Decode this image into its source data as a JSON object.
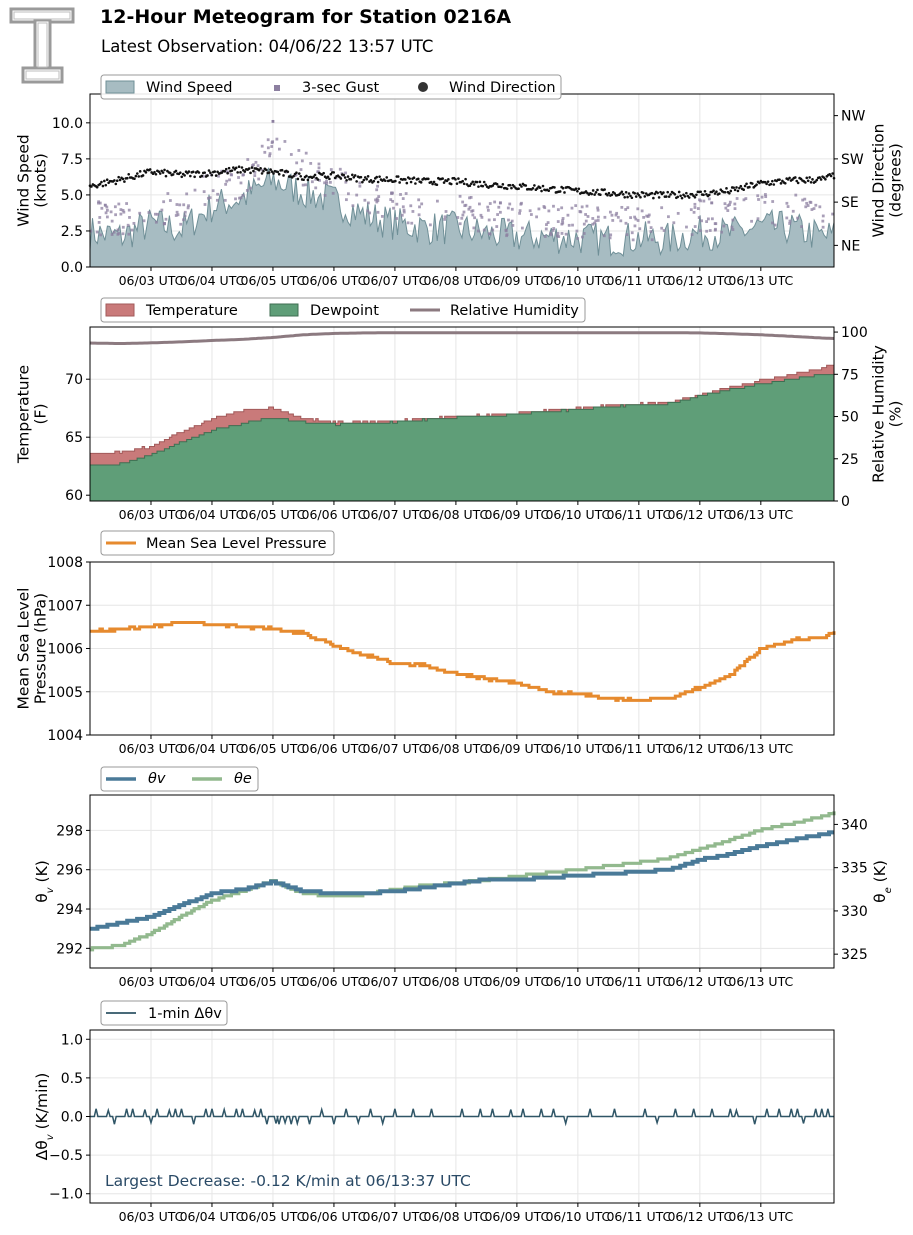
{
  "header": {
    "title": "12-Hour Meteogram for Station 0216A",
    "subtitle": "Latest Observation: 04/06/22 13:57 UTC",
    "logo_label": "TT"
  },
  "colors": {
    "wind_fill": "#a7bcc2",
    "wind_line": "#6f8f97",
    "gust": "#8c7fa0",
    "direction": "#111111",
    "temperature": "#c97a7a",
    "temperature_edge": "#a25a5a",
    "dewpoint": "#5f9e78",
    "dewpoint_edge": "#3f6e52",
    "rh": "#8c7a80",
    "pressure": "#e68a2e",
    "theta_v": "#4a7a98",
    "theta_e": "#92b98e",
    "dtheta": "#2f5566",
    "annotation": "#2a4a66",
    "grid": "#e6e6e6"
  },
  "x_ticks": [
    "06/03 UTC",
    "06/04 UTC",
    "06/05 UTC",
    "06/06 UTC",
    "06/07 UTC",
    "06/08 UTC",
    "06/09 UTC",
    "06/10 UTC",
    "06/11 UTC",
    "06/12 UTC",
    "06/13 UTC"
  ],
  "chart_data": [
    {
      "type": "area",
      "id": "wind",
      "x_range": [
        0,
        12.2
      ],
      "ylabel": "Wind Speed\n(knots)",
      "ylim": [
        0,
        12
      ],
      "yticks": [
        "0.0",
        "2.5",
        "5.0",
        "7.5",
        "10.0"
      ],
      "ytick_values": [
        0,
        2.5,
        5.0,
        7.5,
        10.0
      ],
      "y2label": "Wind Direction\n(degrees)",
      "y2ticks": [
        "NE",
        "SE",
        "SW",
        "NW"
      ],
      "y2tick_values": [
        45,
        135,
        225,
        315
      ],
      "y2lim": [
        0,
        360
      ],
      "grid": true,
      "legend": "top-left",
      "series": [
        {
          "name": "Wind Speed",
          "kind": "area",
          "x": [
            0,
            0.5,
            1,
            1.5,
            2,
            2.5,
            3,
            3.5,
            4,
            4.5,
            5,
            5.5,
            6,
            6.5,
            7,
            7.5,
            8,
            8.5,
            9,
            9.5,
            10,
            10.5,
            11,
            11.5,
            12,
            12.2
          ],
          "values": [
            2.4,
            2.1,
            3.0,
            2.6,
            4.2,
            4.8,
            6.0,
            5.2,
            4.6,
            3.6,
            3.0,
            2.7,
            2.7,
            2.3,
            2.1,
            2.1,
            2.0,
            1.9,
            2.0,
            1.9,
            2.4,
            2.3,
            2.8,
            2.7,
            2.1,
            2.2
          ]
        },
        {
          "name": "3-sec Gust",
          "kind": "scatter",
          "x": [
            0,
            0.5,
            1,
            1.5,
            2,
            2.5,
            3,
            3.5,
            4,
            4.5,
            5,
            5.5,
            6,
            6.5,
            7,
            7.5,
            8,
            8.5,
            9,
            9.5,
            10,
            10.5,
            11,
            11.5,
            12,
            12.2
          ],
          "values": [
            3.4,
            3.2,
            4.2,
            4.0,
            5.6,
            6.0,
            8.2,
            6.8,
            5.8,
            4.8,
            4.4,
            3.9,
            3.8,
            3.5,
            3.3,
            3.3,
            3.1,
            3.0,
            3.1,
            3.0,
            3.6,
            3.5,
            4.2,
            4.0,
            3.3,
            3.4
          ]
        },
        {
          "name": "Wind Direction",
          "kind": "scatter",
          "axis": "right",
          "x": [
            0,
            0.5,
            1,
            1.5,
            2,
            2.5,
            3,
            3.5,
            4,
            4.5,
            5,
            5.5,
            6,
            6.5,
            7,
            7.5,
            8,
            8.5,
            9,
            9.5,
            10,
            10.5,
            11,
            11.5,
            12,
            12.2
          ],
          "values": [
            168,
            182,
            198,
            192,
            196,
            203,
            198,
            188,
            190,
            183,
            182,
            178,
            178,
            172,
            168,
            163,
            158,
            154,
            150,
            149,
            152,
            158,
            174,
            180,
            182,
            190
          ]
        }
      ]
    },
    {
      "type": "area",
      "id": "temp",
      "x_range": [
        0,
        12.2
      ],
      "ylabel": "Temperature\n(F)",
      "ylim": [
        59.5,
        74.5
      ],
      "yticks": [
        "60",
        "65",
        "70"
      ],
      "ytick_values": [
        60,
        65,
        70
      ],
      "y2label": "Relative Humidity\n(%)",
      "y2ticks": [
        "0",
        "25",
        "50",
        "75",
        "100"
      ],
      "y2tick_values": [
        0,
        25,
        50,
        75,
        100
      ],
      "y2lim": [
        0,
        103
      ],
      "grid": true,
      "legend": "top-left",
      "series": [
        {
          "name": "Temperature",
          "kind": "area",
          "x": [
            0,
            0.5,
            1,
            1.5,
            2,
            2.5,
            3,
            3.5,
            4,
            4.5,
            5,
            5.5,
            6,
            6.5,
            7,
            7.5,
            8,
            8.5,
            9,
            9.5,
            10,
            10.5,
            11,
            11.5,
            12,
            12.2
          ],
          "values": [
            63.6,
            63.7,
            64.2,
            65.5,
            66.6,
            67.3,
            67.5,
            66.6,
            66.3,
            66.3,
            66.4,
            66.6,
            66.8,
            66.9,
            67.1,
            67.3,
            67.5,
            67.7,
            67.9,
            68.0,
            68.7,
            69.3,
            69.9,
            70.4,
            70.9,
            71.4
          ]
        },
        {
          "name": "Dewpoint",
          "kind": "area",
          "x": [
            0,
            0.5,
            1,
            1.5,
            2,
            2.5,
            3,
            3.5,
            4,
            4.5,
            5,
            5.5,
            6,
            6.5,
            7,
            7.5,
            8,
            8.5,
            9,
            9.5,
            10,
            10.5,
            11,
            11.5,
            12,
            12.2
          ],
          "values": [
            62.5,
            62.7,
            63.5,
            64.6,
            65.6,
            66.2,
            66.7,
            66.3,
            66.1,
            66.2,
            66.3,
            66.5,
            66.7,
            66.8,
            67.0,
            67.2,
            67.4,
            67.6,
            67.8,
            67.9,
            68.6,
            69.1,
            69.6,
            70.0,
            70.4,
            70.5
          ]
        },
        {
          "name": "Relative Humidity",
          "kind": "line",
          "axis": "right",
          "x": [
            0,
            0.5,
            1,
            1.5,
            2,
            2.5,
            3,
            3.5,
            4,
            4.5,
            5,
            5.5,
            6,
            6.5,
            7,
            7.5,
            8,
            8.5,
            9,
            9.5,
            10,
            10.5,
            11,
            11.5,
            12,
            12.2
          ],
          "values": [
            93.5,
            93.2,
            93.6,
            94.2,
            95.0,
            95.7,
            96.8,
            98.4,
            99.2,
            99.5,
            99.6,
            99.6,
            99.6,
            99.6,
            99.6,
            99.6,
            99.6,
            99.6,
            99.6,
            99.6,
            99.5,
            99.0,
            98.4,
            97.5,
            96.5,
            96.2
          ]
        }
      ]
    },
    {
      "type": "line",
      "id": "pressure",
      "x_range": [
        0,
        12.2
      ],
      "ylabel": "Mean Sea Level\nPressure (hPa)",
      "ylim": [
        1004,
        1008
      ],
      "yticks": [
        "1004",
        "1005",
        "1006",
        "1007",
        "1008"
      ],
      "ytick_values": [
        1004,
        1005,
        1006,
        1007,
        1008
      ],
      "grid": true,
      "legend": "top-left",
      "series": [
        {
          "name": "Mean Sea Level Pressure",
          "x": [
            0,
            0.5,
            1,
            1.5,
            2,
            2.5,
            3,
            3.5,
            4,
            4.5,
            5,
            5.5,
            6,
            6.5,
            7,
            7.5,
            8,
            8.5,
            9,
            9.5,
            10,
            10.5,
            11,
            11.5,
            12,
            12.2
          ],
          "values": [
            1006.4,
            1006.45,
            1006.5,
            1006.6,
            1006.55,
            1006.5,
            1006.45,
            1006.35,
            1006.05,
            1005.85,
            1005.65,
            1005.6,
            1005.4,
            1005.3,
            1005.2,
            1005.0,
            1004.95,
            1004.85,
            1004.8,
            1004.85,
            1005.1,
            1005.4,
            1006.0,
            1006.2,
            1006.25,
            1006.4
          ]
        }
      ]
    },
    {
      "type": "line",
      "id": "theta",
      "x_range": [
        0,
        12.2
      ],
      "ylabel": "θ_v (K)",
      "ylim": [
        291.0,
        299.8
      ],
      "yticks": [
        "292",
        "294",
        "296",
        "298"
      ],
      "ytick_values": [
        292,
        294,
        296,
        298
      ],
      "y2label": "θ_e (K)",
      "y2ticks": [
        "325",
        "330",
        "335",
        "340"
      ],
      "y2tick_values": [
        325,
        330,
        335,
        340
      ],
      "y2lim": [
        323.4,
        343.4
      ],
      "grid": true,
      "legend": "top-left",
      "series": [
        {
          "name": "θv",
          "x": [
            0,
            0.5,
            1,
            1.5,
            2,
            2.5,
            3,
            3.5,
            4,
            4.5,
            5,
            5.5,
            6,
            6.5,
            7,
            7.5,
            8,
            8.5,
            9,
            9.5,
            10,
            10.5,
            11,
            11.5,
            12,
            12.2
          ],
          "values": [
            293.0,
            293.3,
            293.6,
            294.2,
            294.8,
            295.0,
            295.4,
            294.9,
            294.8,
            294.8,
            294.9,
            295.1,
            295.3,
            295.5,
            295.5,
            295.6,
            295.7,
            295.8,
            295.9,
            296.0,
            296.5,
            296.8,
            297.2,
            297.5,
            297.8,
            297.9
          ]
        },
        {
          "name": "θe",
          "axis": "right",
          "x": [
            0,
            0.5,
            1,
            1.5,
            2,
            2.5,
            3,
            3.5,
            4,
            4.5,
            5,
            5.5,
            6,
            6.5,
            7,
            7.5,
            8,
            8.5,
            9,
            9.5,
            10,
            10.5,
            11,
            11.5,
            12,
            12.2
          ],
          "values": [
            325.6,
            326.0,
            327.4,
            329.4,
            331.2,
            332.3,
            333.5,
            332.0,
            331.7,
            331.9,
            332.5,
            333.0,
            333.2,
            333.6,
            334.0,
            334.4,
            334.8,
            335.2,
            335.6,
            336.1,
            337.2,
            338.2,
            339.4,
            340.1,
            340.9,
            341.4
          ]
        }
      ]
    },
    {
      "type": "line",
      "id": "dtheta",
      "x_range": [
        0,
        12.2
      ],
      "ylabel": "Δθ_v (K/min)",
      "ylim": [
        -1.12,
        1.12
      ],
      "yticks": [
        "−1.0",
        "−0.5",
        "0.0",
        "0.5",
        "1.0"
      ],
      "ytick_values": [
        -1.0,
        -0.5,
        0.0,
        0.5,
        1.0
      ],
      "grid": true,
      "legend": "top-left",
      "annotation": "Largest Decrease: -0.12 K/min at 06/13:37 UTC",
      "series": [
        {
          "name": "1-min Δθv",
          "baseline": 0.0,
          "spikes_x": [
            0.1,
            0.3,
            0.4,
            0.6,
            0.7,
            0.9,
            1.0,
            1.1,
            1.3,
            1.4,
            1.5,
            1.7,
            1.9,
            2.0,
            2.2,
            2.4,
            2.5,
            2.7,
            2.8,
            2.9,
            3.05,
            3.1,
            3.2,
            3.3,
            3.4,
            3.6,
            3.8,
            4.0,
            4.2,
            4.4,
            4.6,
            4.8,
            5.0,
            5.3,
            5.6,
            6.1,
            6.4,
            6.6,
            6.9,
            7.1,
            7.4,
            7.6,
            7.8,
            8.2,
            8.6,
            9.1,
            9.3,
            9.6,
            9.9,
            10.2,
            10.5,
            10.6,
            10.9,
            11.1,
            11.3,
            11.5,
            11.6,
            11.7,
            11.9,
            12.0,
            12.1
          ],
          "spikes_y": [
            0.1,
            0.08,
            -0.1,
            0.1,
            0.1,
            0.09,
            -0.08,
            0.1,
            0.08,
            0.1,
            0.1,
            -0.1,
            0.1,
            0.1,
            0.09,
            0.1,
            0.1,
            0.08,
            0.1,
            -0.1,
            -0.09,
            -0.1,
            -0.08,
            -0.1,
            -0.09,
            -0.1,
            0.09,
            -0.1,
            0.1,
            -0.08,
            0.1,
            -0.09,
            0.1,
            0.1,
            0.1,
            0.1,
            0.1,
            0.1,
            0.09,
            0.1,
            0.1,
            0.1,
            -0.09,
            0.1,
            0.1,
            0.1,
            -0.08,
            0.1,
            0.1,
            0.1,
            0.1,
            0.08,
            -0.1,
            0.1,
            0.1,
            0.1,
            0.1,
            -0.09,
            0.1,
            0.1,
            0.1
          ]
        }
      ]
    }
  ]
}
